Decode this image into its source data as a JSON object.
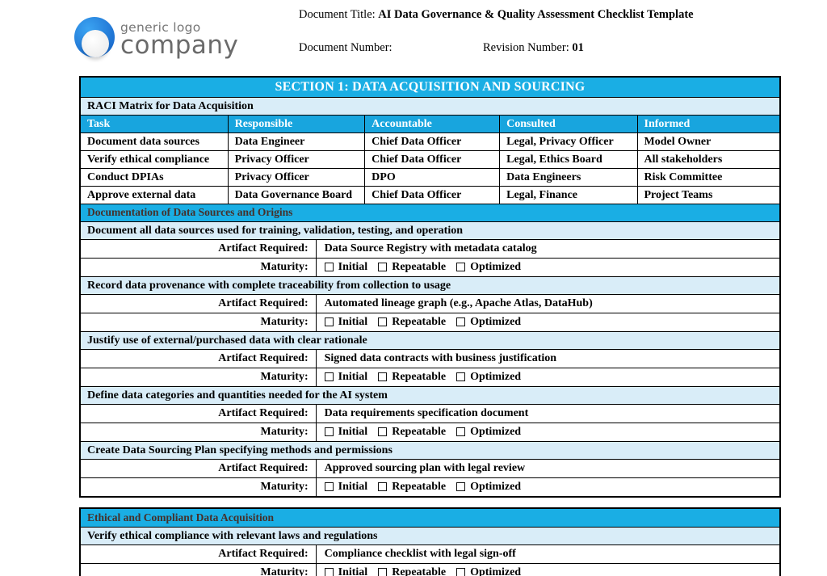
{
  "header": {
    "logo_line1": "generic logo",
    "logo_line2": "company",
    "document_title_label": "Document Title:",
    "document_title_value": "AI Data Governance & Quality Assessment Checklist Template",
    "document_number_label": "Document Number:",
    "revision_number_label": "Revision Number:",
    "revision_number_value": "01"
  },
  "labels": {
    "artifact_required": "Artifact Required:",
    "maturity": "Maturity:"
  },
  "maturity_options": [
    "Initial",
    "Repeatable",
    "Optimized"
  ],
  "colors": {
    "section_header_bg": "#1AAEE4",
    "raci_header_bg": "#18A5DE",
    "light_row_bg": "#D9EDF8",
    "subheader_text": "#46302A",
    "logo_blue_light": "#3BA4F2",
    "logo_blue_dark": "#1D6FD0"
  },
  "section1": {
    "title": "SECTION 1: DATA ACQUISITION AND SOURCING",
    "raci_caption": "RACI Matrix for Data Acquisition",
    "raci_columns": [
      "Task",
      "Responsible",
      "Accountable",
      "Consulted",
      "Informed"
    ],
    "raci_rows": [
      [
        "Document data sources",
        "Data Engineer",
        "Chief Data Officer",
        "Legal, Privacy Officer",
        "Model Owner"
      ],
      [
        "Verify ethical compliance",
        "Privacy Officer",
        "Chief Data Officer",
        "Legal, Ethics Board",
        "All stakeholders"
      ],
      [
        "Conduct DPIAs",
        "Privacy Officer",
        "DPO",
        "Data Engineers",
        "Risk Committee"
      ],
      [
        "Approve external data",
        "Data Governance Board",
        "Chief Data Officer",
        "Legal, Finance",
        "Project Teams"
      ]
    ],
    "subsections": [
      {
        "title": "Documentation of Data Sources and Origins",
        "items": [
          {
            "requirement": "Document all data sources used for training, validation, testing, and operation",
            "artifact": "Data Source Registry with metadata catalog"
          },
          {
            "requirement": "Record data provenance with complete traceability from collection to usage",
            "artifact": "Automated lineage graph (e.g., Apache Atlas, DataHub)"
          },
          {
            "requirement": "Justify use of external/purchased data with clear rationale",
            "artifact": "Signed data contracts with business justification"
          },
          {
            "requirement": "Define data categories and quantities needed for the AI system",
            "artifact": "Data requirements specification document"
          },
          {
            "requirement": "Create Data Sourcing Plan specifying methods and permissions",
            "artifact": "Approved sourcing plan with legal review"
          }
        ]
      },
      {
        "title": "Ethical and Compliant Data Acquisition",
        "items": [
          {
            "requirement": "Verify ethical compliance with relevant laws and regulations",
            "artifact": "Compliance checklist with legal sign-off"
          }
        ]
      }
    ]
  }
}
